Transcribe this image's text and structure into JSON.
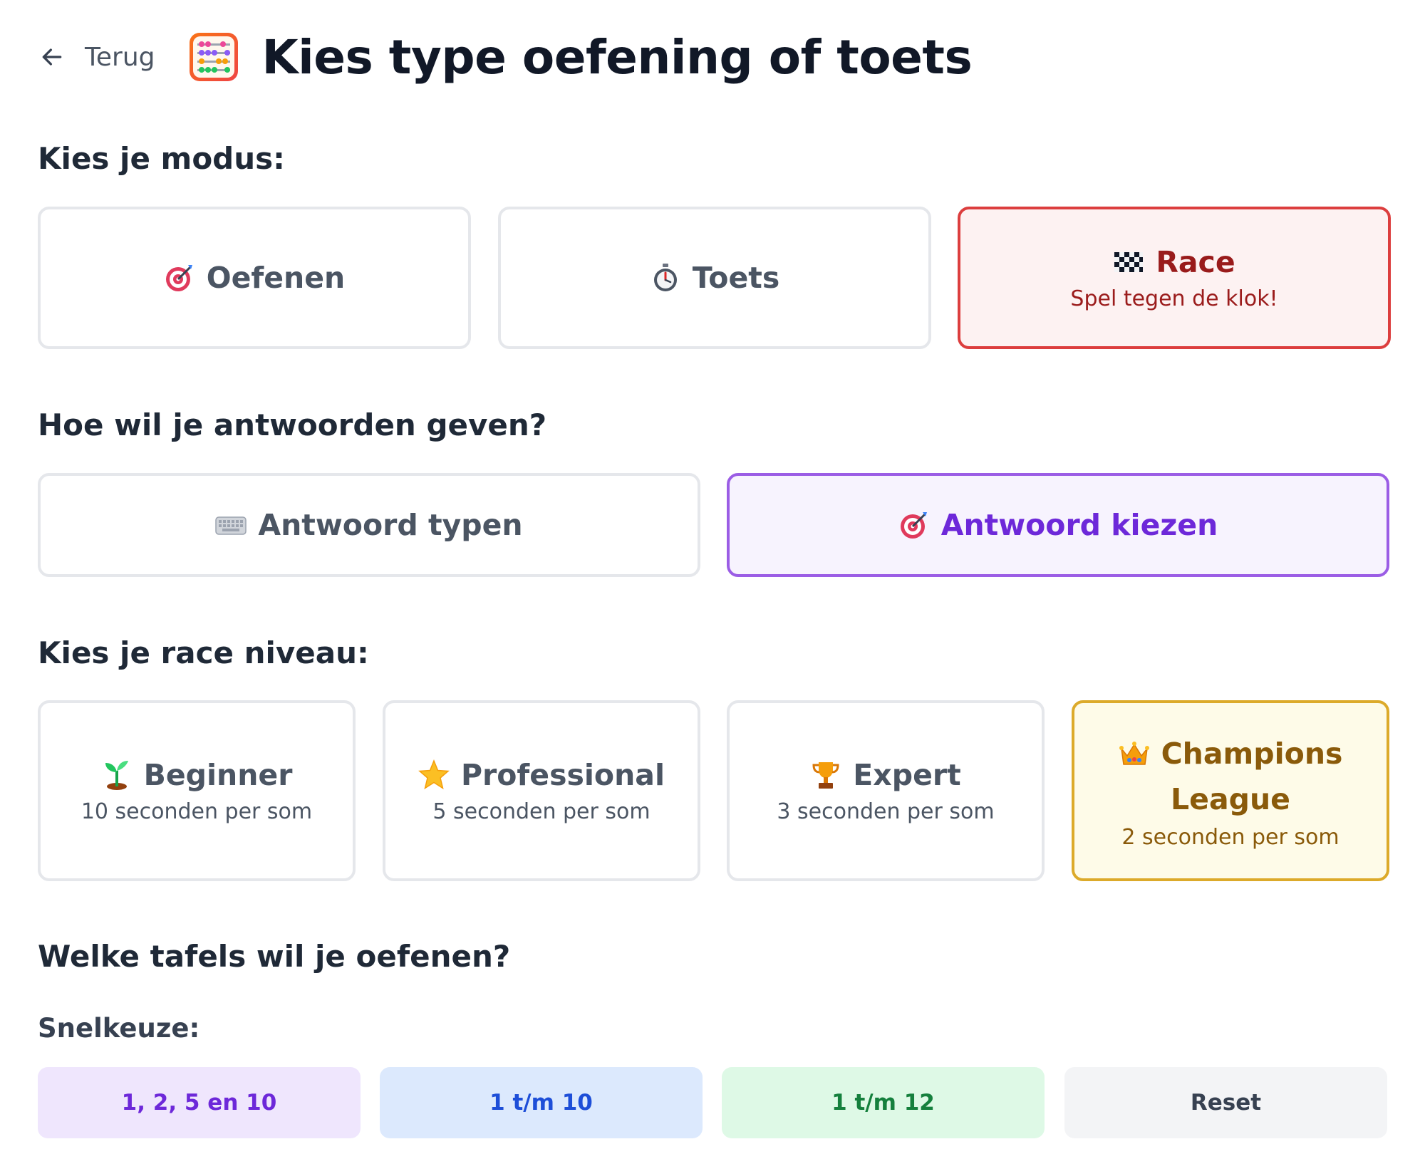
{
  "header": {
    "back_label": "Terug",
    "title": "Kies type oefening of toets"
  },
  "mode": {
    "heading": "Kies je modus:",
    "options": [
      {
        "label": "Oefenen",
        "icon": "target-icon"
      },
      {
        "label": "Toets",
        "icon": "stopwatch-icon"
      },
      {
        "label": "Race",
        "description": "Spel tegen de klok!",
        "icon": "checkered-flag-icon",
        "selected": true
      }
    ]
  },
  "answer": {
    "heading": "Hoe wil je antwoorden geven?",
    "options": [
      {
        "label": "Antwoord typen",
        "icon": "keyboard-icon"
      },
      {
        "label": "Antwoord kiezen",
        "icon": "target-icon",
        "selected": true
      }
    ]
  },
  "level": {
    "heading": "Kies je race niveau:",
    "options": [
      {
        "label": "Beginner",
        "description": "10 seconden per som",
        "icon": "seedling-icon"
      },
      {
        "label": "Professional",
        "description": "5 seconden per som",
        "icon": "star-icon"
      },
      {
        "label": "Expert",
        "description": "3 seconden per som",
        "icon": "trophy-icon"
      },
      {
        "label_line1": "Champions",
        "label_line2": "League",
        "description": "2 seconden per som",
        "icon": "crown-icon",
        "selected": true
      }
    ]
  },
  "tables": {
    "heading": "Welke tafels wil je oefenen?",
    "quick_heading": "Snelkeuze:",
    "quick_options": [
      {
        "label": "1, 2, 5 en 10",
        "bg": "#efe6fd",
        "color": "#6d28d9"
      },
      {
        "label": "1 t/m 10",
        "bg": "#dce9fd",
        "color": "#1d4ed8"
      },
      {
        "label": "1 t/m 12",
        "bg": "#def9e6",
        "color": "#15803d"
      },
      {
        "label": "Reset",
        "bg": "#f3f4f6",
        "color": "#374151"
      }
    ]
  }
}
